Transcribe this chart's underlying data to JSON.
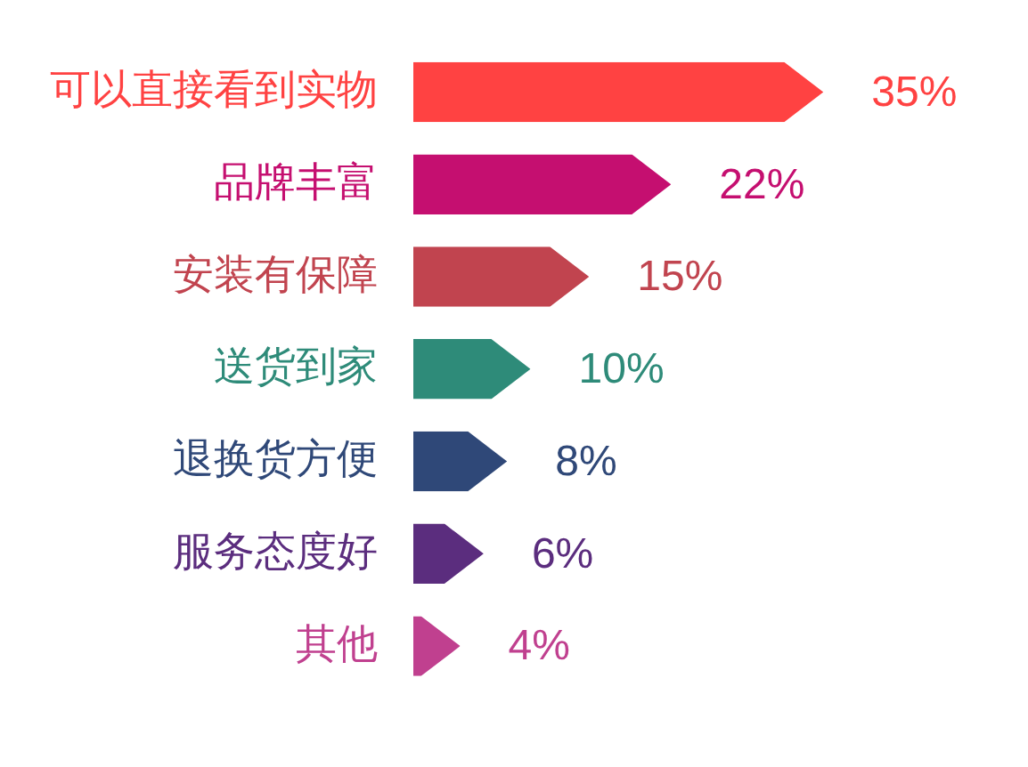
{
  "chart_data": {
    "type": "bar",
    "orientation": "horizontal",
    "categories": [
      "可以直接看到实物",
      "品牌丰富",
      "安装有保障",
      "送货到家",
      "退换货方便",
      "服务态度好",
      "其他"
    ],
    "values": [
      35,
      22,
      15,
      10,
      8,
      6,
      4
    ],
    "colors": [
      "#ff4242",
      "#c50f70",
      "#c1444f",
      "#2e8b79",
      "#2f4878",
      "#5b2d7e",
      "#c0408f"
    ],
    "value_labels": [
      "35%",
      "22%",
      "15%",
      "10%",
      "8%",
      "6%",
      "4%"
    ]
  }
}
